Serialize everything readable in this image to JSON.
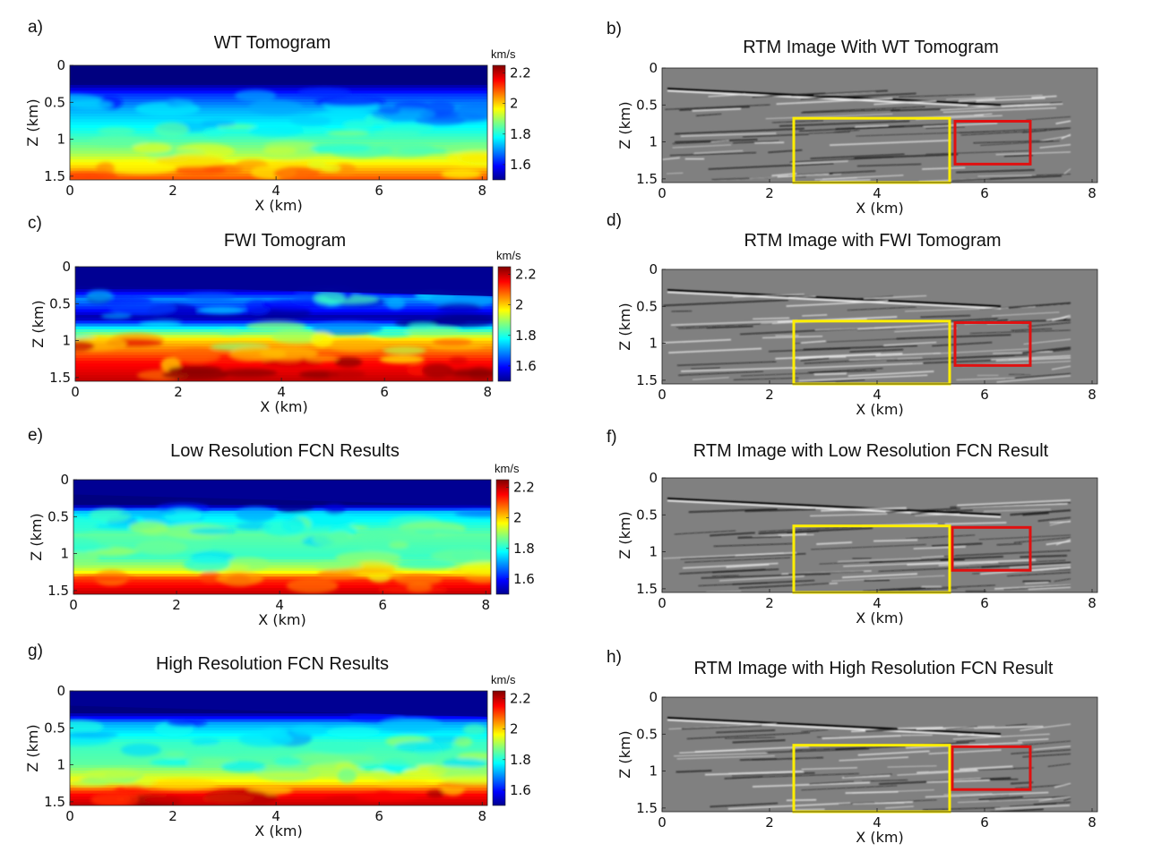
{
  "figure": {
    "colors": {
      "yellow_box": "#ffee00",
      "red_box": "#e01010",
      "rtm_gray": "#808080"
    }
  },
  "chart_data": [
    {
      "id": "a",
      "type": "heatmap",
      "letter": "a)",
      "title": "WT Tomogram",
      "xlabel": "X (km)",
      "ylabel": "Z (km)",
      "xlim": [
        0,
        8.1
      ],
      "ylim": [
        0,
        1.55
      ],
      "xticks": [
        0,
        2,
        4,
        6,
        8
      ],
      "xtick_labels": [
        "0",
        "2",
        "4",
        "6",
        "8"
      ],
      "yticks": [
        0,
        0.5,
        1,
        1.5
      ],
      "ytick_labels": [
        "0",
        "0.5",
        "1",
        "1.5"
      ],
      "colorbar": {
        "unit": "km/s",
        "ticks": [
          1.6,
          1.8,
          2,
          2.2
        ],
        "tick_labels": [
          "1.6",
          "1.8",
          "2",
          "2.2"
        ],
        "range": [
          1.5,
          2.25
        ]
      },
      "velocity_profile": [
        [
          0,
          1.5
        ],
        [
          0.25,
          1.5
        ],
        [
          0.4,
          1.63
        ],
        [
          0.6,
          1.72
        ],
        [
          0.9,
          1.8
        ],
        [
          1.2,
          1.9
        ],
        [
          1.55,
          2.1
        ]
      ]
    },
    {
      "id": "b",
      "type": "heatmap",
      "letter": "b)",
      "title": "RTM Image With WT Tomogram",
      "xlabel": "X (km)",
      "ylabel": "Z (km)",
      "xlim": [
        0,
        8.1
      ],
      "ylim": [
        0,
        1.55
      ],
      "xticks": [
        0,
        2,
        4,
        6,
        8
      ],
      "xtick_labels": [
        "0",
        "2",
        "4",
        "6",
        "8"
      ],
      "yticks": [
        0,
        0.5,
        1,
        1.5
      ],
      "ytick_labels": [
        "0",
        "0.5",
        "1",
        "1.5"
      ],
      "boxes": [
        {
          "color": "yellow",
          "x": [
            2.45,
            5.35
          ],
          "z": [
            0.68,
            1.55
          ]
        },
        {
          "color": "red",
          "x": [
            5.45,
            6.85
          ],
          "z": [
            0.72,
            1.3
          ]
        }
      ]
    },
    {
      "id": "c",
      "type": "heatmap",
      "letter": "c)",
      "title": "FWI Tomogram",
      "xlabel": "X (km)",
      "ylabel": "Z (km)",
      "xlim": [
        0,
        8.1
      ],
      "ylim": [
        0,
        1.55
      ],
      "xticks": [
        0,
        2,
        4,
        6,
        8
      ],
      "xtick_labels": [
        "0",
        "2",
        "4",
        "6",
        "8"
      ],
      "yticks": [
        0,
        0.5,
        1,
        1.5
      ],
      "ytick_labels": [
        "0",
        "0.5",
        "1",
        "1.5"
      ],
      "colorbar": {
        "unit": "km/s",
        "ticks": [
          1.6,
          1.8,
          2,
          2.2
        ],
        "tick_labels": [
          "1.6",
          "1.8",
          "2",
          "2.2"
        ],
        "range": [
          1.5,
          2.25
        ]
      },
      "velocity_profile": [
        [
          0,
          1.5
        ],
        [
          0.3,
          1.52
        ],
        [
          0.45,
          1.7
        ],
        [
          0.6,
          1.6
        ],
        [
          0.7,
          1.52
        ],
        [
          0.85,
          1.8
        ],
        [
          1.0,
          2.0
        ],
        [
          1.3,
          2.15
        ],
        [
          1.55,
          2.2
        ]
      ]
    },
    {
      "id": "d",
      "type": "heatmap",
      "letter": "d)",
      "title": "RTM Image with FWI Tomogram",
      "xlabel": "X (km)",
      "ylabel": "Z (km)",
      "xlim": [
        0,
        8.1
      ],
      "ylim": [
        0,
        1.55
      ],
      "xticks": [
        0,
        2,
        4,
        6,
        8
      ],
      "xtick_labels": [
        "0",
        "2",
        "4",
        "6",
        "8"
      ],
      "yticks": [
        0,
        0.5,
        1,
        1.5
      ],
      "ytick_labels": [
        "0",
        "0.5",
        "1",
        "1.5"
      ],
      "boxes": [
        {
          "color": "yellow",
          "x": [
            2.45,
            5.35
          ],
          "z": [
            0.7,
            1.55
          ]
        },
        {
          "color": "red",
          "x": [
            5.45,
            6.85
          ],
          "z": [
            0.72,
            1.3
          ]
        }
      ]
    },
    {
      "id": "e",
      "type": "heatmap",
      "letter": "e)",
      "title": "Low Resolution FCN Results",
      "xlabel": "X (km)",
      "ylabel": "Z (km)",
      "xlim": [
        0,
        8.1
      ],
      "ylim": [
        0,
        1.55
      ],
      "xticks": [
        0,
        2,
        4,
        6,
        8
      ],
      "xtick_labels": [
        "0",
        "2",
        "4",
        "6",
        "8"
      ],
      "yticks": [
        0,
        0.5,
        1,
        1.5
      ],
      "ytick_labels": [
        "0",
        "0.5",
        "1",
        "1.5"
      ],
      "colorbar": {
        "unit": "km/s",
        "ticks": [
          1.6,
          1.8,
          2,
          2.2
        ],
        "tick_labels": [
          "1.6",
          "1.8",
          "2",
          "2.2"
        ],
        "range": [
          1.5,
          2.25
        ]
      },
      "velocity_profile": [
        [
          0,
          1.5
        ],
        [
          0.35,
          1.5
        ],
        [
          0.45,
          1.75
        ],
        [
          0.75,
          1.85
        ],
        [
          1.05,
          1.82
        ],
        [
          1.25,
          1.95
        ],
        [
          1.35,
          2.12
        ],
        [
          1.55,
          2.2
        ]
      ]
    },
    {
      "id": "f",
      "type": "heatmap",
      "letter": "f)",
      "title": "RTM Image with Low Resolution FCN Result",
      "xlabel": "X (km)",
      "ylabel": "Z (km)",
      "xlim": [
        0,
        8.1
      ],
      "ylim": [
        0,
        1.55
      ],
      "xticks": [
        0,
        2,
        4,
        6,
        8
      ],
      "xtick_labels": [
        "0",
        "2",
        "4",
        "6",
        "8"
      ],
      "yticks": [
        0,
        0.5,
        1,
        1.5
      ],
      "ytick_labels": [
        "0",
        "0.5",
        "1",
        "1.5"
      ],
      "boxes": [
        {
          "color": "yellow",
          "x": [
            2.45,
            5.35
          ],
          "z": [
            0.65,
            1.55
          ]
        },
        {
          "color": "red",
          "x": [
            5.4,
            6.85
          ],
          "z": [
            0.67,
            1.25
          ]
        }
      ]
    },
    {
      "id": "g",
      "type": "heatmap",
      "letter": "g)",
      "title": "High Resolution FCN Results",
      "xlabel": "X (km)",
      "ylabel": "Z (km)",
      "xlim": [
        0,
        8.1
      ],
      "ylim": [
        0,
        1.55
      ],
      "xticks": [
        0,
        2,
        4,
        6,
        8
      ],
      "xtick_labels": [
        "0",
        "2",
        "4",
        "6",
        "8"
      ],
      "yticks": [
        0,
        0.5,
        1,
        1.5
      ],
      "ytick_labels": [
        "0",
        "0.5",
        "1",
        "1.5"
      ],
      "colorbar": {
        "unit": "km/s",
        "ticks": [
          1.6,
          1.8,
          2,
          2.2
        ],
        "tick_labels": [
          "1.6",
          "1.8",
          "2",
          "2.2"
        ],
        "range": [
          1.5,
          2.25
        ]
      },
      "velocity_profile": [
        [
          0,
          1.5
        ],
        [
          0.3,
          1.5
        ],
        [
          0.45,
          1.72
        ],
        [
          0.7,
          1.82
        ],
        [
          1.0,
          1.85
        ],
        [
          1.25,
          1.98
        ],
        [
          1.4,
          2.15
        ],
        [
          1.55,
          2.2
        ]
      ]
    },
    {
      "id": "h",
      "type": "heatmap",
      "letter": "h)",
      "title": "RTM Image with High Resolution FCN Result",
      "xlabel": "X (km)",
      "ylabel": "Z (km)",
      "xlim": [
        0,
        8.1
      ],
      "ylim": [
        0,
        1.55
      ],
      "xticks": [
        0,
        2,
        4,
        6,
        8
      ],
      "xtick_labels": [
        "0",
        "2",
        "4",
        "6",
        "8"
      ],
      "yticks": [
        0,
        0.5,
        1,
        1.5
      ],
      "ytick_labels": [
        "0",
        "0.5",
        "1",
        "1.5"
      ],
      "boxes": [
        {
          "color": "yellow",
          "x": [
            2.45,
            5.35
          ],
          "z": [
            0.65,
            1.55
          ]
        },
        {
          "color": "red",
          "x": [
            5.4,
            6.85
          ],
          "z": [
            0.67,
            1.25
          ]
        }
      ]
    }
  ]
}
